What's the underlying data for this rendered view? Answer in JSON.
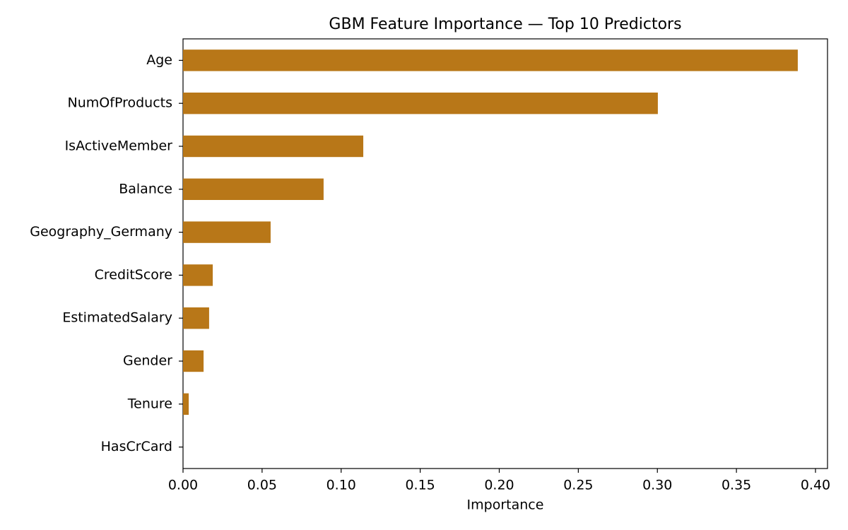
{
  "chart_data": {
    "type": "barh",
    "title": "GBM Feature Importance — Top 10 Predictors",
    "x_label": "Importance",
    "categories": [
      "Age",
      "NumOfProducts",
      "IsActiveMember",
      "Balance",
      "Geography_Germany",
      "CreditScore",
      "EstimatedSalary",
      "Gender",
      "Tenure",
      "HasCrCard"
    ],
    "values": [
      0.3888,
      0.3003,
      0.114,
      0.0889,
      0.0554,
      0.0188,
      0.0165,
      0.013,
      0.0036,
      0.0
    ],
    "color": "#b87718",
    "xlim": [
      0,
      0.4076
    ],
    "xticks": [
      {
        "value": 0,
        "label": "0.00"
      },
      0.05,
      {
        "value": 0.1,
        "label": "0.10"
      },
      0.15,
      {
        "value": 0.2,
        "label": "0.20"
      },
      0.25,
      {
        "value": 0.3,
        "label": "0.30"
      },
      0.35,
      {
        "value": 0.4,
        "label": "0.40"
      }
    ]
  }
}
